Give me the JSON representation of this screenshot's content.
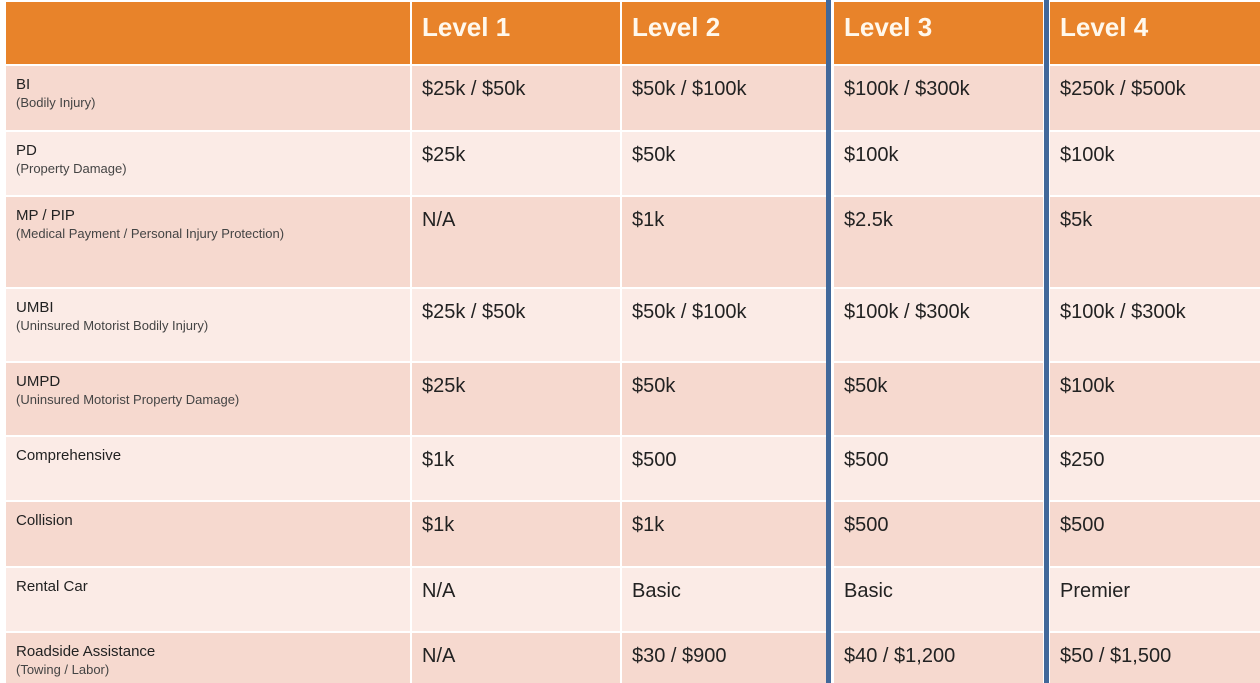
{
  "header": [
    "",
    "Level 1",
    "Level 2",
    "Level 3",
    "Level 4"
  ],
  "rows": [
    {
      "label": "BI",
      "sub": "(Bodily Injury)",
      "values": [
        "$25k / $50k",
        "$50k / $100k",
        "$100k / $300k",
        "$250k / $500k"
      ]
    },
    {
      "label": "PD",
      "sub": "(Property Damage)",
      "values": [
        "$25k",
        "$50k",
        "$100k",
        "$100k"
      ]
    },
    {
      "label": "MP / PIP",
      "sub": "(Medical Payment / Personal Injury Protection)",
      "values": [
        "N/A",
        "$1k",
        "$2.5k",
        "$5k"
      ]
    },
    {
      "label": "UMBI",
      "sub": "(Uninsured Motorist Bodily Injury)",
      "values": [
        "$25k / $50k",
        "$50k / $100k",
        "$100k / $300k",
        "$100k / $300k"
      ]
    },
    {
      "label": "UMPD",
      "sub": "(Uninsured Motorist Property Damage)",
      "values": [
        "$25k",
        "$50k",
        "$50k",
        "$100k"
      ]
    },
    {
      "label": "Comprehensive",
      "sub": "",
      "values": [
        "$1k",
        "$500",
        "$500",
        "$250"
      ]
    },
    {
      "label": "Collision",
      "sub": "",
      "values": [
        "$1k",
        "$1k",
        "$500",
        "$500"
      ]
    },
    {
      "label": "Rental Car",
      "sub": "",
      "values": [
        "N/A",
        "Basic",
        "Basic",
        "Premier"
      ]
    },
    {
      "label": "Roadside Assistance",
      "sub": "(Towing / Labor)",
      "values": [
        "N/A",
        "$30 / $900",
        "$40 / $1,200",
        "$50 / $1,500"
      ]
    }
  ],
  "colors": {
    "header": "#E8832A",
    "row_dark": "#F6D9CF",
    "row_light": "#FBEBE6",
    "highlight_line": "#41689A"
  }
}
